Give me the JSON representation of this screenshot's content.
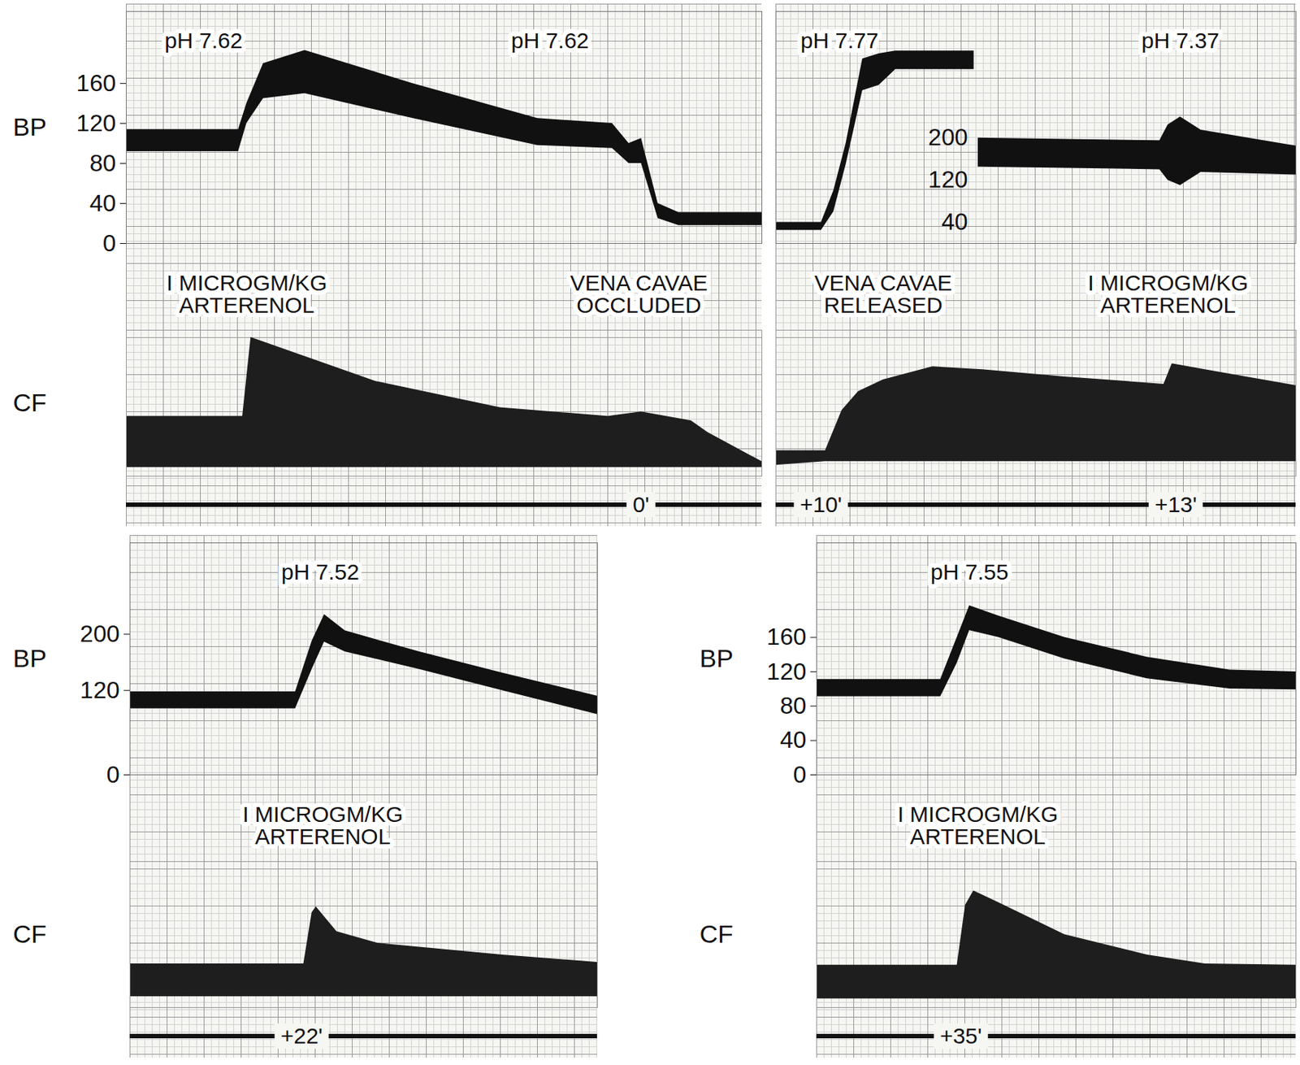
{
  "chart_data": [
    {
      "type": "band",
      "grid": true,
      "tick_labels": "y",
      "y_label": "BP",
      "y2_label": "CF",
      "xlim": [
        0,
        76.5
      ],
      "ylim": [
        0,
        232
      ],
      "yticks": [
        0,
        40,
        80,
        120,
        160
      ],
      "y2lim": [
        0,
        100
      ],
      "series": [
        {
          "color": "#111111",
          "x": [
            0,
            13.5,
            14.5,
            16.5,
            21.5,
            34.5,
            49.5,
            58.5,
            60.5,
            62,
            64,
            66.5,
            76.5
          ],
          "low": [
            92,
            92,
            120,
            145,
            150,
            125,
            98,
            95,
            80,
            80,
            25,
            18,
            18
          ],
          "high": [
            114,
            114,
            140,
            180,
            193,
            160,
            125,
            120,
            100,
            105,
            40,
            31,
            31
          ]
        },
        {
          "axis": "y2",
          "color": "#1e1e1e",
          "x": [
            0,
            14,
            15,
            20,
            30,
            45,
            58,
            62,
            68,
            70,
            76.5
          ],
          "low": [
            6,
            6,
            6,
            6,
            6,
            6,
            6,
            6,
            6,
            6,
            6
          ],
          "high": [
            41,
            41,
            95,
            85,
            65,
            47,
            41,
            44,
            38,
            30,
            10
          ]
        }
      ],
      "annotations": [
        {
          "x": 9.3,
          "lines": [
            "pH 7.62"
          ],
          "position": "top"
        },
        {
          "x": 51,
          "lines": [
            "pH 7.62"
          ],
          "position": "top"
        },
        {
          "x": 14.5,
          "lines": [
            "I MICROGM/KG",
            "ARTERENOL"
          ],
          "position": "middle"
        },
        {
          "x": 61.7,
          "lines": [
            "VENA CAVAE",
            "OCCLUDED"
          ],
          "position": "middle"
        },
        {
          "x": 62,
          "lines": [
            "0'"
          ],
          "position": "bottom"
        }
      ]
    },
    {
      "type": "band",
      "grid": true,
      "tick_labels": "y",
      "xlim": [
        0,
        63
      ],
      "ylim": [
        0,
        440
      ],
      "yticks": [
        40,
        120,
        200
      ],
      "y2lim": [
        0,
        100
      ],
      "series": [
        {
          "color": "#111111",
          "x": [
            0,
            5.5,
            7,
            8.5,
            10.5,
            12.5,
            14.5,
            24,
            24.2,
            24.5,
            46.5,
            47.5,
            49,
            51.5,
            63
          ],
          "low": [
            25,
            25,
            60,
            150,
            290,
            300,
            330,
            330,
            null,
            145,
            140,
            120,
            110,
            135,
            130
          ],
          "high": [
            40,
            40,
            100,
            190,
            350,
            360,
            365,
            365,
            null,
            200,
            195,
            225,
            240,
            215,
            185
          ]
        },
        {
          "axis": "y2",
          "color": "#1e1e1e",
          "x": [
            0,
            6,
            8,
            10,
            13,
            19,
            25,
            35,
            47,
            48,
            52,
            63
          ],
          "low": [
            7.5,
            10,
            10,
            10,
            10,
            10,
            10,
            10,
            10,
            10,
            10,
            10
          ],
          "high": [
            17.5,
            17.5,
            45,
            58,
            66,
            75,
            73,
            68,
            63,
            77,
            73,
            62
          ]
        }
      ],
      "annotations": [
        {
          "x": 7.7,
          "lines": [
            "pH 7.77"
          ],
          "position": "top"
        },
        {
          "x": 49,
          "lines": [
            "pH 7.37"
          ],
          "position": "top"
        },
        {
          "x": 13,
          "lines": [
            "VENA CAVAE",
            "RELEASED"
          ],
          "position": "middle"
        },
        {
          "x": 47.5,
          "lines": [
            "I MICROGM/KG",
            "ARTERENOL"
          ],
          "position": "middle"
        },
        {
          "x": 5.5,
          "lines": [
            "+10'"
          ],
          "position": "bottom"
        },
        {
          "x": 48.5,
          "lines": [
            "+13'"
          ],
          "position": "bottom"
        }
      ]
    },
    {
      "type": "band",
      "grid": true,
      "tick_labels": "y",
      "y_label": "BP",
      "y2_label": "CF",
      "xlim": [
        0,
        56.5
      ],
      "ylim": [
        0,
        330
      ],
      "yticks": [
        0,
        120,
        200
      ],
      "y2lim": [
        0,
        100
      ],
      "series": [
        {
          "color": "#111111",
          "x": [
            0,
            20,
            22,
            23.5,
            26,
            35,
            45,
            56.5
          ],
          "low": [
            94,
            94,
            150,
            189,
            175,
            150,
            120,
            86
          ],
          "high": [
            118,
            118,
            190,
            228,
            205,
            175,
            145,
            112
          ]
        },
        {
          "axis": "y2",
          "color": "#1e1e1e",
          "x": [
            0,
            21,
            22,
            22.5,
            25,
            30,
            45,
            56.5
          ],
          "low": [
            7.5,
            7.5,
            7.5,
            7.5,
            7.5,
            7.5,
            7.5,
            7.5
          ],
          "high": [
            30,
            30,
            65,
            69,
            52,
            44,
            36,
            31
          ]
        }
      ],
      "annotations": [
        {
          "x": 23,
          "lines": [
            "pH 7.52"
          ],
          "position": "top"
        },
        {
          "x": 23.3,
          "lines": [
            "I MICROGM/KG",
            "ARTERENOL"
          ],
          "position": "middle"
        },
        {
          "x": 20.8,
          "lines": [
            "+22'"
          ],
          "position": "bottom"
        }
      ]
    },
    {
      "type": "band",
      "grid": true,
      "tick_labels": "y",
      "y_label": "BP",
      "y2_label": "CF",
      "xlim": [
        0,
        58
      ],
      "ylim": [
        0,
        270
      ],
      "yticks": [
        0,
        40,
        80,
        120,
        160
      ],
      "y2lim": [
        0,
        100
      ],
      "series": [
        {
          "color": "#111111",
          "x": [
            0,
            15,
            17,
            18.5,
            22,
            30,
            40,
            50,
            58
          ],
          "low": [
            91,
            91,
            130,
            168,
            160,
            135,
            112,
            100,
            99
          ],
          "high": [
            111,
            111,
            160,
            197,
            185,
            160,
            137,
            122,
            120
          ]
        },
        {
          "axis": "y2",
          "color": "#1e1e1e",
          "x": [
            0,
            17,
            18,
            19,
            22,
            30,
            40,
            47,
            58
          ],
          "low": [
            6,
            6,
            6,
            6,
            6,
            6,
            6,
            6,
            6
          ],
          "high": [
            29,
            29,
            70,
            80,
            72,
            50,
            36,
            30,
            29
          ]
        }
      ],
      "annotations": [
        {
          "x": 18.5,
          "lines": [
            "pH 7.55"
          ],
          "position": "top"
        },
        {
          "x": 19.5,
          "lines": [
            "I MICROGM/KG",
            "ARTERENOL"
          ],
          "position": "middle"
        },
        {
          "x": 17.5,
          "lines": [
            "+35'"
          ],
          "position": "bottom"
        }
      ]
    }
  ]
}
